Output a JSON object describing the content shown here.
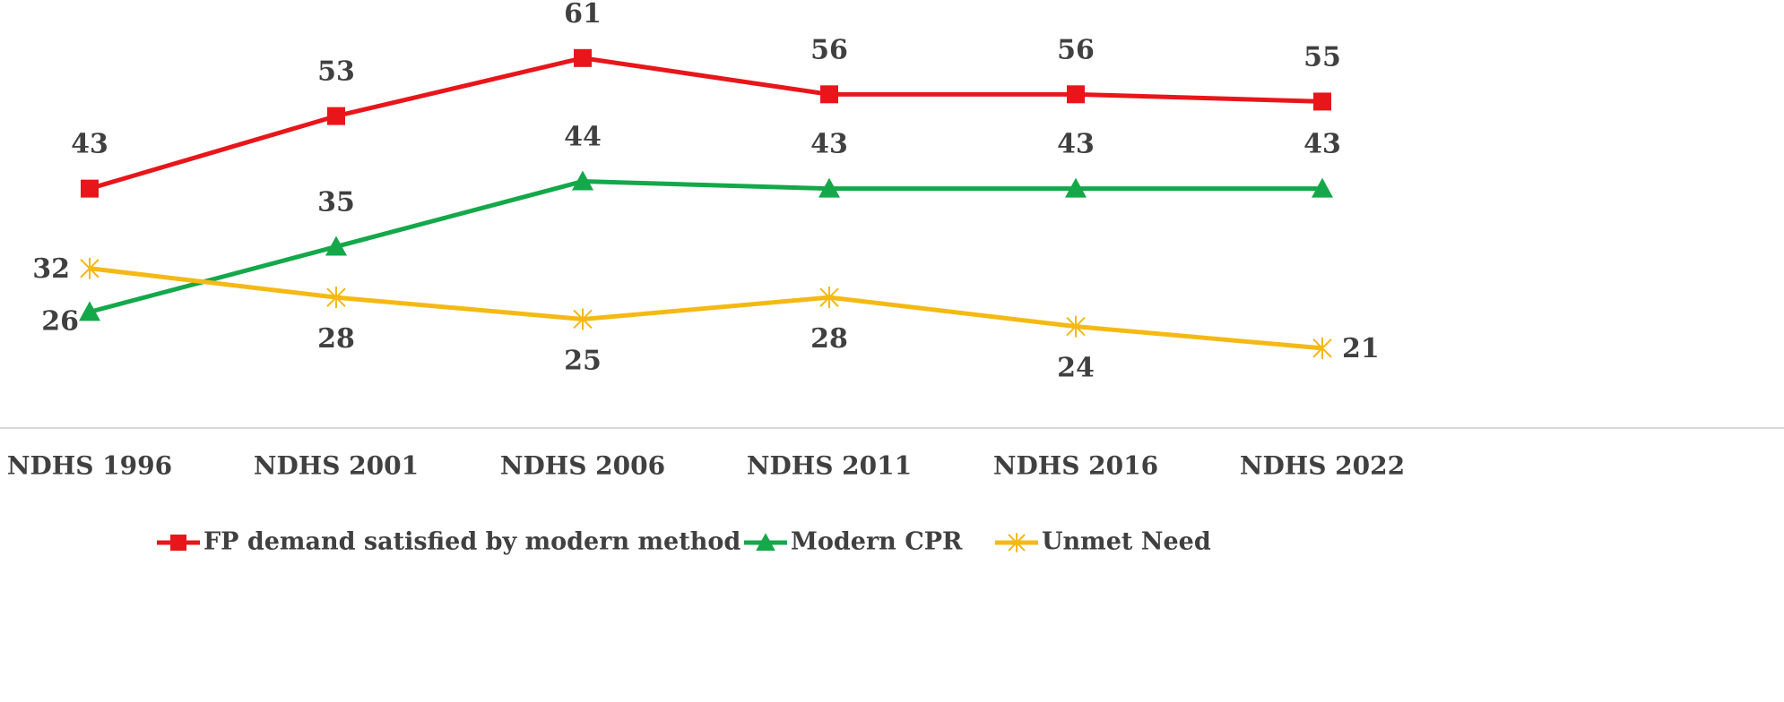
{
  "chart_data": {
    "type": "line",
    "categories": [
      "NDHS 1996",
      "NDHS 2001",
      "NDHS 2006",
      "NDHS 2011",
      "NDHS 2016",
      "NDHS 2022"
    ],
    "series": [
      {
        "name": "FP demand satisfied by modern method",
        "color": "#e8161b",
        "marker": "square",
        "values": [
          43,
          53,
          61,
          56,
          56,
          55
        ]
      },
      {
        "name": "Modern CPR",
        "color": "#14a84a",
        "marker": "triangle",
        "values": [
          26,
          35,
          44,
          43,
          43,
          43
        ]
      },
      {
        "name": "Unmet Need",
        "color": "#f5b914",
        "marker": "x",
        "values": [
          32,
          28,
          25,
          28,
          24,
          21
        ]
      }
    ],
    "ylim": [
      10,
      69
    ],
    "legend": "bottom"
  }
}
